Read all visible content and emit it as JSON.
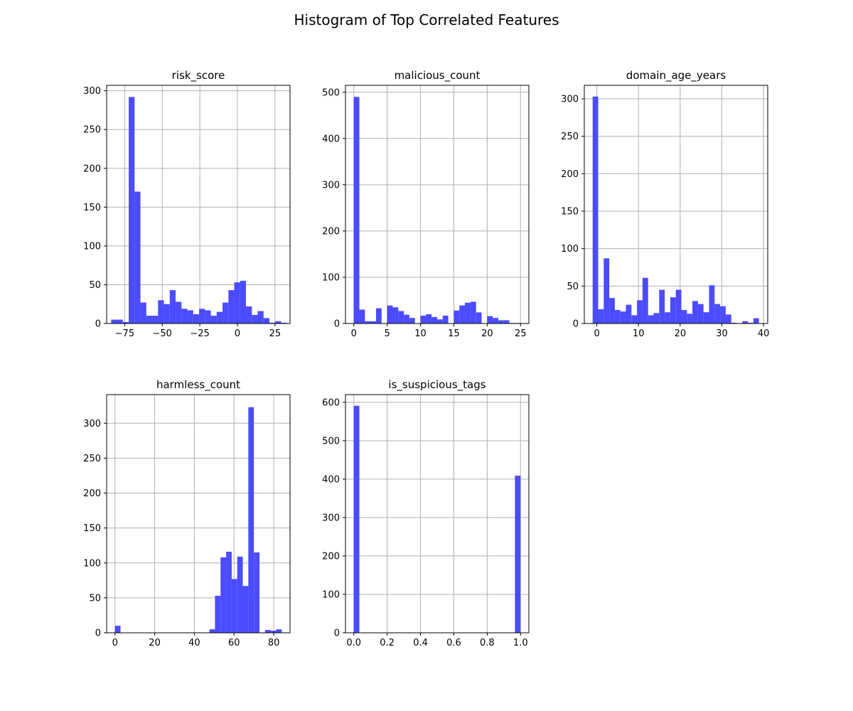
{
  "figure": {
    "title": "Histogram of Top Correlated Features"
  },
  "colors": {
    "bar": "#4b4bff",
    "grid": "#b0b0b0",
    "axis": "#000000"
  },
  "chart_data": [
    {
      "type": "bar",
      "title": "risk_score",
      "xlim": [
        -87,
        35
      ],
      "ylim": [
        0,
        307
      ],
      "xticks": [
        -75,
        -50,
        -25,
        0,
        25
      ],
      "yticks": [
        0,
        50,
        100,
        150,
        200,
        250,
        300
      ],
      "grid": true,
      "bin_start": -84,
      "bin_width": 3.9,
      "values": [
        5,
        5,
        2,
        292,
        170,
        27,
        10,
        10,
        30,
        25,
        43,
        28,
        19,
        17,
        12,
        19,
        17,
        10,
        15,
        27,
        43,
        53,
        55,
        22,
        11,
        16,
        7,
        1,
        3,
        1
      ]
    },
    {
      "type": "bar",
      "title": "malicious_count",
      "xlim": [
        -1.25,
        26.25
      ],
      "ylim": [
        0,
        515
      ],
      "xticks": [
        0,
        5,
        10,
        15,
        20,
        25
      ],
      "yticks": [
        0,
        100,
        200,
        300,
        400,
        500
      ],
      "grid": true,
      "bin_start": 0,
      "bin_width": 0.8333,
      "values": [
        490,
        30,
        5,
        5,
        33,
        0,
        39,
        35,
        27,
        19,
        12,
        0,
        17,
        20,
        14,
        9,
        17,
        0,
        28,
        39,
        45,
        47,
        24,
        0,
        16,
        12,
        7,
        7,
        1,
        1
      ]
    },
    {
      "type": "bar",
      "title": "domain_age_years",
      "xlim": [
        -3,
        41
      ],
      "ylim": [
        0,
        318
      ],
      "xticks": [
        0,
        10,
        20,
        30,
        40
      ],
      "yticks": [
        0,
        50,
        100,
        150,
        200,
        250,
        300
      ],
      "grid": true,
      "bin_start": -1,
      "bin_width": 1.33,
      "values": [
        303,
        19,
        87,
        34,
        18,
        16,
        25,
        11,
        31,
        61,
        11,
        14,
        45,
        15,
        35,
        45,
        18,
        13,
        30,
        26,
        15,
        51,
        26,
        23,
        12,
        1,
        0,
        3,
        1,
        7
      ]
    },
    {
      "type": "bar",
      "title": "harmless_count",
      "xlim": [
        -4.2,
        88.2
      ],
      "ylim": [
        0,
        341
      ],
      "xticks": [
        0,
        20,
        40,
        60,
        80
      ],
      "yticks": [
        0,
        50,
        100,
        150,
        200,
        250,
        300
      ],
      "grid": true,
      "bin_start": 0,
      "bin_width": 2.8,
      "values": [
        10,
        0,
        0,
        0,
        0,
        0,
        0,
        0,
        0,
        0,
        0,
        0,
        0,
        0,
        0,
        0,
        0,
        5,
        53,
        108,
        116,
        77,
        109,
        67,
        323,
        115,
        0,
        4,
        3,
        5
      ]
    },
    {
      "type": "bar",
      "title": "is_suspicious_tags",
      "xlim": [
        -0.05,
        1.05
      ],
      "ylim": [
        0,
        620
      ],
      "xticks": [
        0.0,
        0.2,
        0.4,
        0.6,
        0.8,
        1.0
      ],
      "xtick_labels": [
        "0.0",
        "0.2",
        "0.4",
        "0.6",
        "0.8",
        "1.0"
      ],
      "yticks": [
        0,
        100,
        200,
        300,
        400,
        500,
        600
      ],
      "grid": true,
      "bin_start": 0,
      "bin_width": 0.03333,
      "values": [
        591,
        0,
        0,
        0,
        0,
        0,
        0,
        0,
        0,
        0,
        0,
        0,
        0,
        0,
        0,
        0,
        0,
        0,
        0,
        0,
        0,
        0,
        0,
        0,
        0,
        0,
        0,
        0,
        0,
        409
      ]
    }
  ]
}
